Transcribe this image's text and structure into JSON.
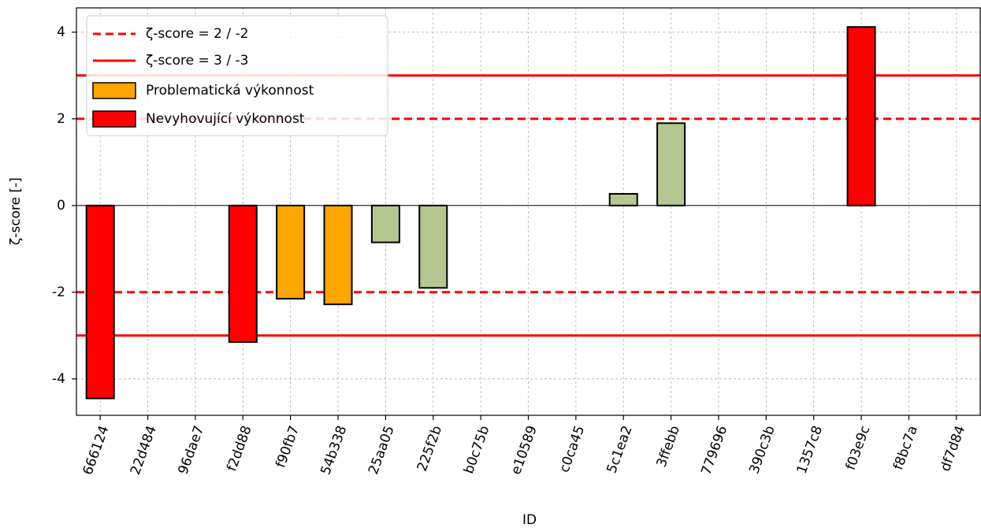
{
  "chart_data": {
    "type": "bar",
    "xlabel": "ID",
    "ylabel": "ζ-score [-]",
    "categories": [
      "666124",
      "22d484",
      "96dae7",
      "f2dd88",
      "f90fb7",
      "54b338",
      "25aa05",
      "225f2b",
      "b0c75b",
      "e10589",
      "c0ca45",
      "5c1ea2",
      "3ffebb",
      "779696",
      "390c3b",
      "1357c8",
      "f03e9c",
      "f8bc7a",
      "df7d84"
    ],
    "values": [
      -4.45,
      0,
      0,
      -3.15,
      -2.15,
      -2.28,
      -0.85,
      -1.9,
      0,
      0,
      0,
      0.27,
      1.9,
      0,
      0,
      0,
      4.12,
      0,
      0
    ],
    "colors": [
      "#ff0000",
      "#b5c790",
      "#b5c790",
      "#ff0000",
      "#ffa500",
      "#ffa500",
      "#b5c790",
      "#b5c790",
      "#b5c790",
      "#b5c790",
      "#b5c790",
      "#b5c790",
      "#b5c790",
      "#b5c790",
      "#b5c790",
      "#b5c790",
      "#ff0000",
      "#b5c790",
      "#b5c790"
    ],
    "ylim": [
      -4.84,
      4.56
    ],
    "yticks": [
      -4,
      -2,
      0,
      2,
      4
    ],
    "grid": true,
    "reference_lines": [
      {
        "name": "ζ-score = 2 / -2",
        "values": [
          2,
          -2
        ],
        "style": "dashed",
        "color": "#ff0000"
      },
      {
        "name": "ζ-score = 3 / -3",
        "values": [
          3,
          -3
        ],
        "style": "solid",
        "color": "#ff0000"
      }
    ],
    "legend_items": [
      {
        "name": "Problematická výkonnost",
        "color": "#ffa500"
      },
      {
        "name": "Nevyhovující výkonnost",
        "color": "#ff0000"
      }
    ],
    "legend": "upper left"
  }
}
